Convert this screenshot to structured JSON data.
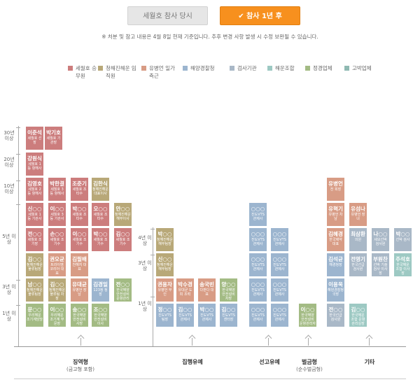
{
  "tabs": [
    {
      "label": "세월호 참사 당시",
      "active": false
    },
    {
      "label": "✔ 참사 1년 후",
      "active": true
    }
  ],
  "notice": "※ 처분 및 참고 내용은 4월 8일 현재 기준입니다. 추후 변경 사항 발생 시 수정 보완될 수 있습니다.",
  "legend": [
    {
      "label": "세월호 승무원",
      "color": "#cc7d7d"
    },
    {
      "label": "청해진해운 임직원",
      "color": "#b8a878"
    },
    {
      "label": "유병언 일가 측근",
      "color": "#d89c85"
    },
    {
      "label": "해양경찰청",
      "color": "#9cb5cf"
    },
    {
      "label": "검사기관",
      "color": "#a9b8c7"
    },
    {
      "label": "해운조합",
      "color": "#9dc9c3"
    },
    {
      "label": "정경업체",
      "color": "#a3bb84"
    },
    {
      "label": "고박업체",
      "color": "#8fb9b2"
    }
  ],
  "y_axis_left": [
    "30년 이상",
    "20년 이상",
    "10년 이상",
    "5년 이상",
    "3년 이상",
    "1년 이상"
  ],
  "y_axis_mid": [
    "4년 이상",
    "3년 이상",
    "1년 이상"
  ],
  "categories": [
    {
      "label": "징역형",
      "sub": "(금고형 포함)"
    },
    {
      "label": "집행유예",
      "sub": ""
    },
    {
      "label": "선고유예",
      "sub": ""
    },
    {
      "label": "벌금형",
      "sub": "(순수벌금형)"
    },
    {
      "label": "기타",
      "sub": ""
    }
  ],
  "cards": [
    {
      "name": "이준석",
      "role": "세월호 선장",
      "color": "c-red"
    },
    {
      "name": "박기호",
      "role": "세월호 기관장",
      "color": "c-red"
    },
    {
      "name": "강원식",
      "role": "세월호 1등 항해사",
      "color": "c-red"
    },
    {
      "name": "김영호",
      "role": "세월호 2등 항해사",
      "color": "c-red"
    },
    {
      "name": "박한결",
      "role": "세월호 3등 항해사",
      "color": "c-red"
    },
    {
      "name": "조준기",
      "role": "세월호 조타수",
      "color": "c-red"
    },
    {
      "name": "김한식",
      "role": "청해진해운 대표이사",
      "color": "c-olive"
    },
    {
      "name": "신○○",
      "role": "세월호 1등 기관사",
      "color": "c-red"
    },
    {
      "name": "이○○",
      "role": "세월호 3등 기관사",
      "color": "c-red"
    },
    {
      "name": "박○○",
      "role": "세월호 조타수",
      "color": "c-red"
    },
    {
      "name": "오○○",
      "role": "세월호 조타수",
      "color": "c-red"
    },
    {
      "name": "안○○",
      "role": "청해진해운 해무이사",
      "color": "c-olive"
    },
    {
      "name": "전○○",
      "role": "세월호 조기장",
      "color": "c-red"
    },
    {
      "name": "손○○",
      "role": "세월호 조기수",
      "color": "c-red"
    },
    {
      "name": "이○○",
      "role": "세월호 조기수",
      "color": "c-red"
    },
    {
      "name": "박○○",
      "role": "세월호 조기수",
      "color": "c-red"
    },
    {
      "name": "김○○",
      "role": "세월호 조기수",
      "color": "c-red"
    },
    {
      "name": "김○○",
      "role": "청해진해운 물류팀장",
      "color": "c-olive"
    },
    {
      "name": "권오균",
      "role": "트라이엠 코리아 대표",
      "color": "c-salmon"
    },
    {
      "name": "김필배",
      "role": "천해지 대표",
      "color": "c-salmon"
    },
    {
      "name": "남○○",
      "role": "청해진해운 물류팀장",
      "color": "c-olive"
    },
    {
      "name": "김○○",
      "role": "청해진해운 물류팀 차장",
      "color": "c-olive"
    },
    {
      "name": "유대균",
      "role": "유병언 장남",
      "color": "c-salmon"
    },
    {
      "name": "김경일",
      "role": "123정 정장",
      "color": "c-blue"
    },
    {
      "name": "전○○",
      "role": "한국해양 안전설비 운항관리",
      "color": "c-green"
    },
    {
      "name": "문○○",
      "role": "우리해운 조기계담당",
      "color": "c-green"
    },
    {
      "name": "이○○",
      "role": "우리해운 조기계 부문장",
      "color": "c-green"
    },
    {
      "name": "송○○",
      "role": "한국해양 안전설비 사장",
      "color": "c-green"
    },
    {
      "name": "조○○",
      "role": "한국해양 안전설비 이사",
      "color": "c-green"
    },
    {
      "name": "박○○",
      "role": "청해진해운 해무팀장",
      "color": "c-olive"
    },
    {
      "name": "신○○",
      "role": "청해진해운 해무팀장",
      "color": "c-olive"
    },
    {
      "name": "권용자",
      "role": "유병언 부인",
      "color": "c-salmon"
    },
    {
      "name": "박수경",
      "role": "유대균 도피 조력",
      "color": "c-salmon"
    },
    {
      "name": "송국빈",
      "role": "다판다 대표",
      "color": "c-salmon"
    },
    {
      "name": "양○○",
      "role": "한국해양 안전설비 차장",
      "color": "c-green"
    },
    {
      "name": "정○○",
      "role": "진도VTS 팀장",
      "color": "c-blue"
    },
    {
      "name": "김○○",
      "role": "진도VTS 관제사",
      "color": "c-blue"
    },
    {
      "name": "박○○",
      "role": "진도VTS 관제사",
      "color": "c-blue"
    },
    {
      "name": "김○○",
      "role": "진도VTS 센터장",
      "color": "c-blue"
    },
    {
      "name": "○○○",
      "role": "진도VTS 관제사",
      "color": "c-blue"
    },
    {
      "name": "○○○",
      "role": "진도VTS 관제사",
      "color": "c-blue"
    },
    {
      "name": "○○○",
      "role": "진도VTS 관제사",
      "color": "c-blue"
    },
    {
      "name": "○○○",
      "role": "진도VTS 관제사",
      "color": "c-blue"
    },
    {
      "name": "○○○",
      "role": "진도VTS 관제사",
      "color": "c-blue"
    },
    {
      "name": "○○○",
      "role": "진도VTS 관제사",
      "color": "c-blue"
    },
    {
      "name": "○○○",
      "role": "진도VTS 관제사",
      "color": "c-blue"
    },
    {
      "name": "○○○",
      "role": "진도VTS 관제사",
      "color": "c-blue"
    },
    {
      "name": "○○○",
      "role": "진도VTS 관제사",
      "color": "c-blue"
    },
    {
      "name": "이○○",
      "role": "한국해양 안전설비 운항관리자",
      "color": "c-green"
    },
    {
      "name": "유병언",
      "role": "전 회장",
      "color": "c-salmon"
    },
    {
      "name": "유혁기",
      "role": "유병언 차남",
      "color": "c-salmon"
    },
    {
      "name": "유섬나",
      "role": "유병언 장녀",
      "color": "c-salmon"
    },
    {
      "name": "김혜경",
      "role": "한국제약 대표",
      "color": "c-salmon"
    },
    {
      "name": "최삼환",
      "role": "의원",
      "color": "c-steel"
    },
    {
      "name": "나○○",
      "role": "세모선박 검사원",
      "color": "c-steel"
    },
    {
      "name": "박○○",
      "role": "선박 검사",
      "color": "c-steel"
    },
    {
      "name": "김석균",
      "role": "해경청장",
      "color": "c-blue"
    },
    {
      "name": "전영기",
      "role": "한국선급 검사원",
      "color": "c-steel"
    },
    {
      "name": "부원찬",
      "role": "선박 기술검사 이사장",
      "color": "c-steel"
    },
    {
      "name": "주석호",
      "role": "한국해운 조합 이사장",
      "color": "c-aqua"
    },
    {
      "name": "이용욱",
      "role": "해양경찰청 국장",
      "color": "c-blue"
    },
    {
      "name": "전○○",
      "role": "한국선급 검사원",
      "color": "c-steel"
    },
    {
      "name": "김○○",
      "role": "한국해운 조합 운항관리실장",
      "color": "c-aqua"
    }
  ]
}
